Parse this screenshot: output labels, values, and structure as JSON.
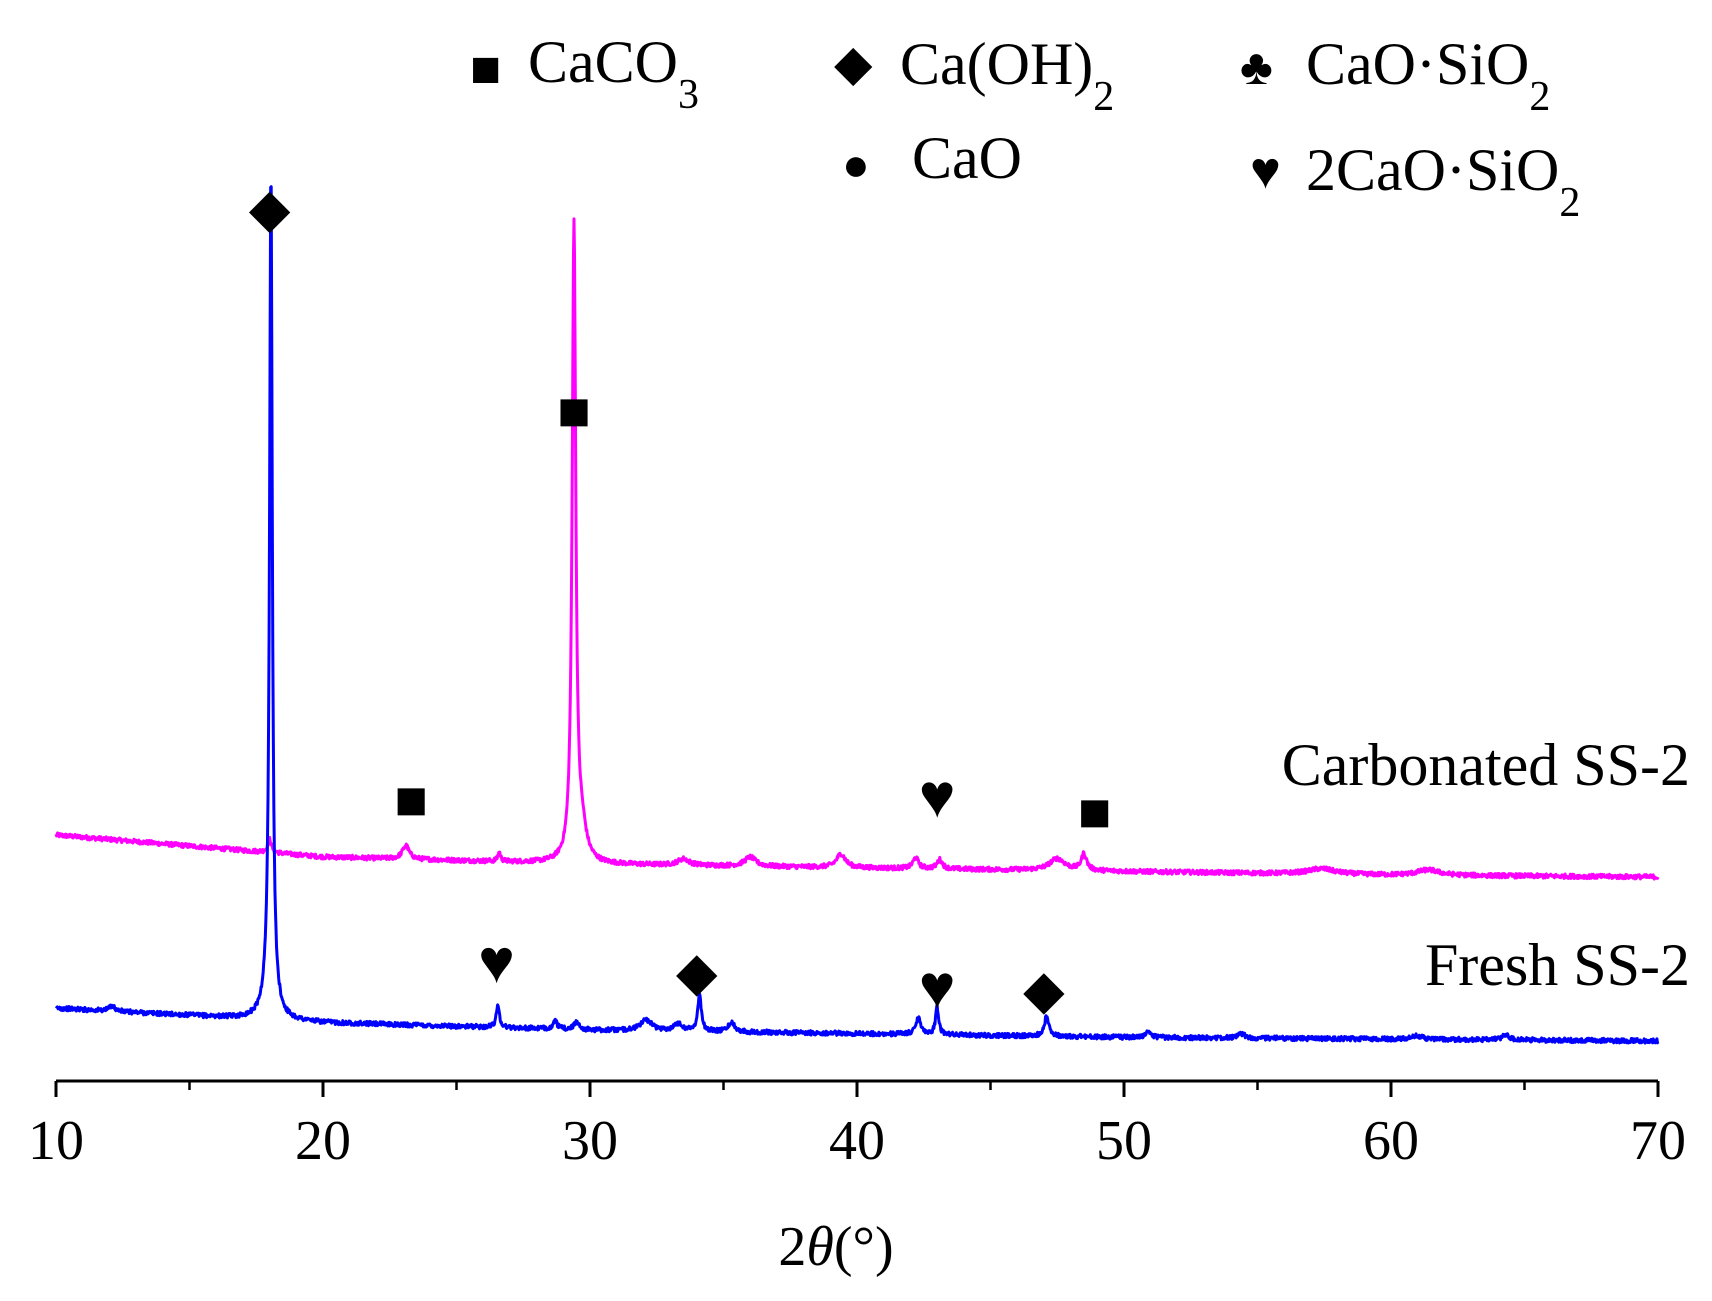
{
  "chart_data": {
    "type": "line",
    "title": "",
    "xlabel_prefix": "2",
    "xlabel_symbol": "θ",
    "xlabel_unit": "(°)",
    "ylabel": "",
    "xlim": [
      10,
      70
    ],
    "ylim": [
      0,
      100
    ],
    "xticks": [
      10,
      20,
      30,
      40,
      50,
      60,
      70
    ],
    "xtick_labels": [
      "10",
      "20",
      "30",
      "40",
      "50",
      "60",
      "70"
    ],
    "grid": false,
    "legend": {
      "placement": "top-right",
      "entries": [
        {
          "id": "caco3",
          "marker": "■",
          "base": "CaCO",
          "sub": "3"
        },
        {
          "id": "caoh2",
          "marker": "◆",
          "base": "Ca(OH)",
          "sub": "2"
        },
        {
          "id": "caosio2",
          "marker": "♣",
          "base": "CaO·SiO",
          "sub": "2"
        },
        {
          "id": "cao",
          "marker": "●",
          "base": "CaO",
          "sub": ""
        },
        {
          "id": "c2s",
          "marker": "♥",
          "base": "2CaO·SiO",
          "sub": "2"
        }
      ]
    },
    "series": [
      {
        "name": "Carbonated SS-2",
        "color": "#ff00ff",
        "baseline": [
          [
            10,
            27.0
          ],
          [
            20,
            24.6
          ],
          [
            30,
            23.8
          ],
          [
            40,
            23.4
          ],
          [
            50,
            23.0
          ],
          [
            60,
            22.6
          ],
          [
            70,
            22.4
          ]
        ],
        "peaks": [
          {
            "x": 18.0,
            "h": 1.5,
            "w": 0.08
          },
          {
            "x": 23.1,
            "h": 1.5,
            "w": 0.15
          },
          {
            "x": 26.6,
            "h": 1.0,
            "w": 0.06
          },
          {
            "x": 29.4,
            "h": 70.0,
            "w": 0.08
          },
          {
            "x": 29.7,
            "h": 3.0,
            "w": 0.2
          },
          {
            "x": 33.5,
            "h": 0.7,
            "w": 0.25
          },
          {
            "x": 36.0,
            "h": 1.0,
            "w": 0.25
          },
          {
            "x": 39.4,
            "h": 1.5,
            "w": 0.2
          },
          {
            "x": 42.2,
            "h": 1.2,
            "w": 0.12
          },
          {
            "x": 43.1,
            "h": 1.0,
            "w": 0.12
          },
          {
            "x": 47.5,
            "h": 1.3,
            "w": 0.35
          },
          {
            "x": 48.5,
            "h": 1.8,
            "w": 0.12
          },
          {
            "x": 57.4,
            "h": 0.6,
            "w": 0.6
          },
          {
            "x": 61.4,
            "h": 0.6,
            "w": 0.5
          }
        ]
      },
      {
        "name": "Fresh SS-2",
        "color": "#0000ff",
        "baseline": [
          [
            10,
            8.0
          ],
          [
            20,
            6.4
          ],
          [
            30,
            5.6
          ],
          [
            40,
            5.2
          ],
          [
            50,
            4.8
          ],
          [
            60,
            4.6
          ],
          [
            70,
            4.4
          ]
        ],
        "peaks": [
          {
            "x": 12.1,
            "h": 0.6,
            "w": 0.12
          },
          {
            "x": 18.05,
            "h": 90.0,
            "w": 0.06
          },
          {
            "x": 18.0,
            "h": 4.0,
            "w": 0.2
          },
          {
            "x": 26.55,
            "h": 2.5,
            "w": 0.07
          },
          {
            "x": 28.7,
            "h": 0.8,
            "w": 0.1
          },
          {
            "x": 29.5,
            "h": 0.9,
            "w": 0.1
          },
          {
            "x": 32.1,
            "h": 1.2,
            "w": 0.25
          },
          {
            "x": 33.3,
            "h": 0.8,
            "w": 0.2
          },
          {
            "x": 34.1,
            "h": 4.0,
            "w": 0.08
          },
          {
            "x": 35.3,
            "h": 1.0,
            "w": 0.15
          },
          {
            "x": 42.3,
            "h": 1.8,
            "w": 0.12
          },
          {
            "x": 43.0,
            "h": 3.0,
            "w": 0.07
          },
          {
            "x": 47.1,
            "h": 2.2,
            "w": 0.1
          },
          {
            "x": 50.9,
            "h": 0.5,
            "w": 0.15
          },
          {
            "x": 54.4,
            "h": 0.5,
            "w": 0.15
          },
          {
            "x": 61.0,
            "h": 0.4,
            "w": 0.2
          },
          {
            "x": 64.3,
            "h": 0.6,
            "w": 0.15
          }
        ]
      }
    ],
    "annotations": [
      {
        "series": "Fresh SS-2",
        "x": 18.0,
        "y": 93.8,
        "marker": "◆",
        "phase": "Ca(OH)2"
      },
      {
        "series": "Carbonated SS-2",
        "x": 29.4,
        "y": 71.5,
        "marker": "■",
        "phase": "CaCO3"
      },
      {
        "series": "Carbonated SS-2",
        "x": 23.3,
        "y": 28.8,
        "marker": "■",
        "phase": "CaCO3"
      },
      {
        "series": "Carbonated SS-2",
        "x": 43.0,
        "y": 29.0,
        "marker": "♥",
        "phase": "2CaO·SiO2"
      },
      {
        "series": "Carbonated SS-2",
        "x": 48.9,
        "y": 27.5,
        "marker": "■",
        "phase": "CaCO3"
      },
      {
        "series": "Fresh SS-2",
        "x": 26.5,
        "y": 10.8,
        "marker": "♥",
        "phase": "2CaO·SiO2"
      },
      {
        "series": "Fresh SS-2",
        "x": 34.0,
        "y": 10.0,
        "marker": "◆",
        "phase": "Ca(OH)2"
      },
      {
        "series": "Fresh SS-2",
        "x": 43.0,
        "y": 8.0,
        "marker": "♥",
        "phase": "2CaO·SiO2"
      },
      {
        "series": "Fresh SS-2",
        "x": 47.0,
        "y": 8.0,
        "marker": "◆",
        "phase": "Ca(OH)2"
      }
    ]
  }
}
